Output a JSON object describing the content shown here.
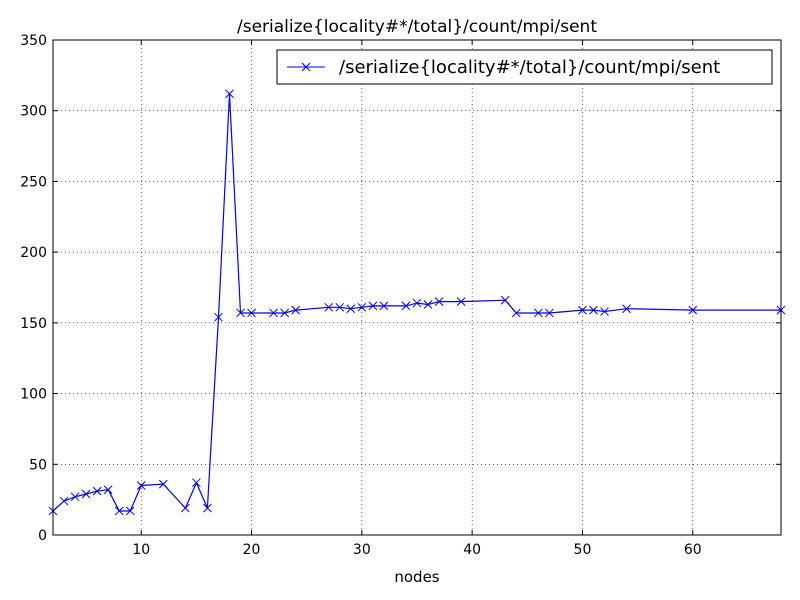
{
  "chart_data": {
    "type": "line",
    "title": "/serialize{locality#*/total}/count/mpi/sent",
    "xlabel": "nodes",
    "ylabel": "",
    "xlim": [
      2,
      68
    ],
    "ylim": [
      0,
      350
    ],
    "xticks": [
      10,
      20,
      30,
      40,
      50,
      60
    ],
    "yticks": [
      0,
      50,
      100,
      150,
      200,
      250,
      300,
      350
    ],
    "grid": true,
    "legend_position": "top-right",
    "series": [
      {
        "name": "/serialize{locality#*/total}/count/mpi/sent",
        "color": "#0000ff",
        "marker": "x",
        "x": [
          2,
          3,
          4,
          5,
          6,
          7,
          8,
          9,
          10,
          12,
          14,
          15,
          16,
          17,
          18,
          19,
          20,
          22,
          23,
          24,
          27,
          28,
          29,
          30,
          31,
          32,
          34,
          35,
          36,
          37,
          39,
          43,
          44,
          46,
          47,
          50,
          51,
          52,
          54,
          60,
          68
        ],
        "y": [
          17,
          24,
          27,
          29,
          31,
          32,
          17,
          17,
          35,
          36,
          19,
          37,
          19,
          154,
          312,
          157,
          157,
          157,
          157,
          159,
          161,
          161,
          160,
          161,
          162,
          162,
          162,
          164,
          163,
          165,
          165,
          166,
          157,
          157,
          157,
          159,
          159,
          158,
          160,
          159,
          159
        ]
      }
    ]
  }
}
